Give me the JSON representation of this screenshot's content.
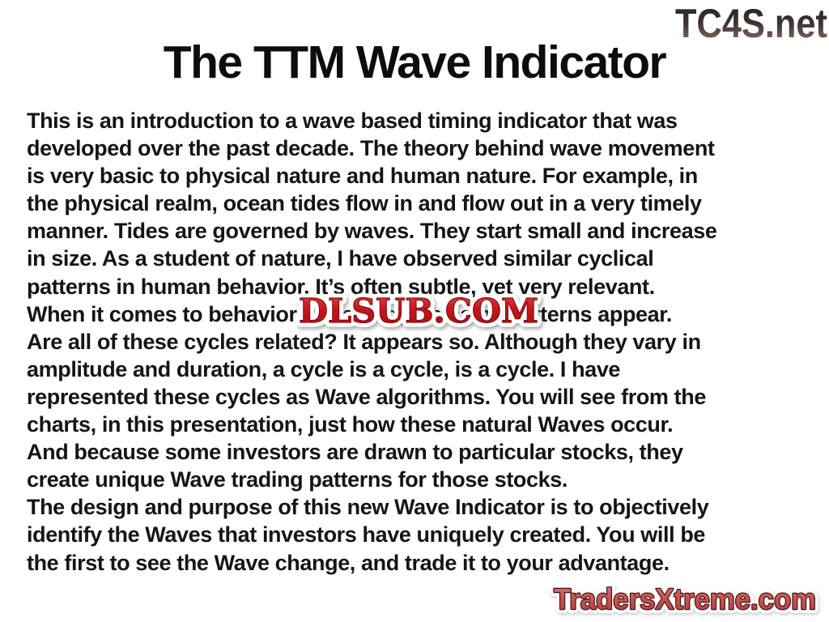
{
  "slide": {
    "title": "The TTM Wave Indicator",
    "body_lines": [
      "This is an introduction to a wave based timing indicator that was",
      "developed over the past decade. The theory behind wave movement",
      "is very basic to physical nature and human nature. For example, in",
      "the physical realm, ocean tides flow in and flow out in a very timely",
      "manner. Tides are governed by waves. They start small and increase",
      "in size. As a student of nature, I have observed similar cyclical",
      "patterns in human behavior. It’s often subtle, yet very relevant.",
      "When it comes to behavior in trading, the same patterns appear.",
      "Are all of these cycles related? It appears so. Although they vary in",
      "amplitude and duration, a cycle is a cycle, is a cycle. I have",
      "represented these cycles as Wave algorithms. You will see from the",
      "charts, in this presentation, just how these natural Waves occur.",
      "And because some investors are drawn to particular stocks, they",
      "create unique Wave trading patterns for those stocks.",
      "The design and purpose of this new Wave Indicator is to objectively",
      "identify the Waves that investors have uniquely created. You will be",
      "the first to see the Wave change, and trade it to your advantage."
    ]
  },
  "watermarks": {
    "tc4s": "TC4S.net",
    "dlsub": "DLSUB.COM",
    "tradersxtreme": "TradersXtreme.com"
  },
  "colors": {
    "body_text": "#151515",
    "tc4s_gradient_top": "#262626",
    "tc4s_gradient_bottom": "#9e7268",
    "dlsub_red": "#c8151c",
    "tradersxtreme_red": "#c4504f",
    "tradersxtreme_outline": "#431012"
  }
}
